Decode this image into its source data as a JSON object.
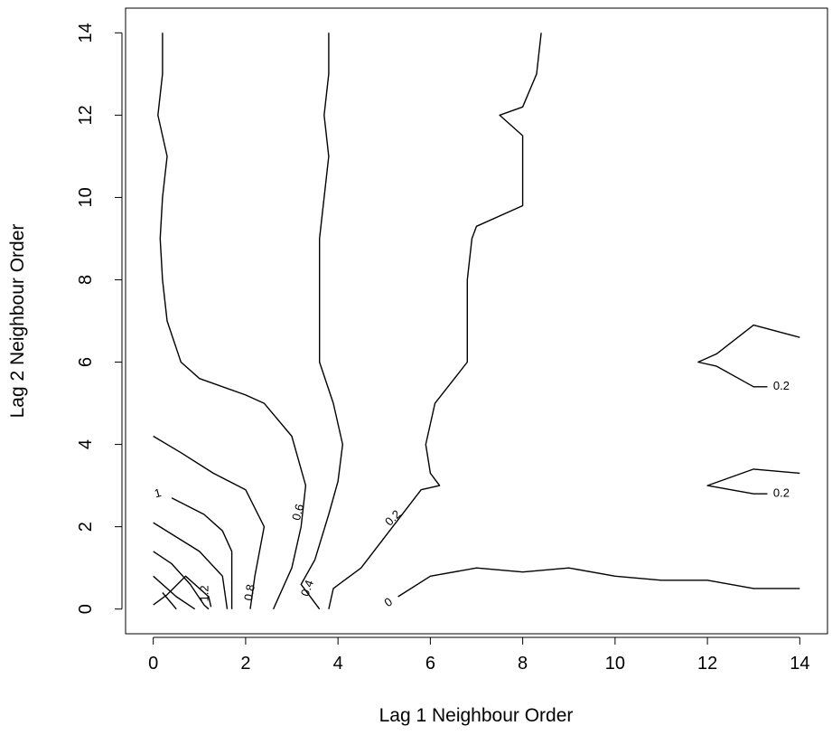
{
  "chart_data": {
    "type": "contour",
    "xlabel": "Lag 1 Neighbour Order",
    "ylabel": "Lag 2 Neighbour Order",
    "xlim": [
      -0.6,
      14.6
    ],
    "ylim": [
      -0.6,
      14.6
    ],
    "x_ticks": [
      0,
      2,
      4,
      6,
      8,
      10,
      12,
      14
    ],
    "y_ticks": [
      0,
      2,
      4,
      6,
      8,
      10,
      12,
      14
    ],
    "x_tick_labels": [
      "0",
      "2",
      "4",
      "6",
      "8",
      "10",
      "12",
      "14"
    ],
    "y_tick_labels": [
      "0",
      "2",
      "4",
      "6",
      "8",
      "10",
      "12",
      "14"
    ],
    "grid": false,
    "contours": [
      {
        "level": "1.2",
        "label": "1.2",
        "label_at": [
          1.12,
          0.38
        ],
        "label_rotation": -90,
        "points": [
          [
            0,
            0.1
          ],
          [
            0.3,
            0.35
          ],
          [
            0.7,
            0.8
          ],
          [
            1.2,
            0.3
          ],
          [
            1.25,
            0.05
          ]
        ]
      },
      {
        "level": "1.2",
        "label": "",
        "label_at": null,
        "label_rotation": 0,
        "points": [
          [
            0.2,
            0.4
          ],
          [
            0.5,
            0
          ]
        ]
      },
      {
        "level": "1.2",
        "label": "",
        "label_at": null,
        "label_rotation": 0,
        "points": [
          [
            0,
            0.8
          ],
          [
            0.5,
            0.3
          ],
          [
            0.9,
            0
          ]
        ]
      },
      {
        "level": "1.2",
        "label": "",
        "label_at": null,
        "label_rotation": 0,
        "points": [
          [
            0,
            1.4
          ],
          [
            0.4,
            1.1
          ],
          [
            0.8,
            0.6
          ],
          [
            1.1,
            0.1
          ],
          [
            1.2,
            0
          ]
        ]
      },
      {
        "level": "1",
        "label": "",
        "label_at": null,
        "label_rotation": 0,
        "points": [
          [
            0,
            2.1
          ],
          [
            1.0,
            1.4
          ],
          [
            1.5,
            0.8
          ],
          [
            1.6,
            0
          ]
        ]
      },
      {
        "level": "1",
        "label": "1",
        "label_at": [
          0.1,
          2.8
        ],
        "label_rotation": -15,
        "points": [
          [
            0.4,
            2.7
          ],
          [
            1.1,
            2.3
          ],
          [
            1.5,
            1.9
          ],
          [
            1.7,
            1.4
          ],
          [
            1.7,
            0
          ]
        ]
      },
      {
        "level": "0.8",
        "label": "0.8",
        "label_at": [
          2.1,
          0.4
        ],
        "label_rotation": -80,
        "points": [
          [
            0,
            4.2
          ],
          [
            0.6,
            3.8
          ],
          [
            1.3,
            3.3
          ],
          [
            2.0,
            2.9
          ],
          [
            2.4,
            2.0
          ],
          [
            2.2,
            0.8
          ],
          [
            2.1,
            0
          ]
        ]
      },
      {
        "level": "0.6",
        "label": "0.6",
        "label_at": [
          3.15,
          2.35
        ],
        "label_rotation": -75,
        "points": [
          [
            0.2,
            14
          ],
          [
            0.2,
            13
          ],
          [
            0.1,
            12
          ],
          [
            0.3,
            11
          ],
          [
            0.2,
            10
          ],
          [
            0.15,
            9
          ],
          [
            0.2,
            8
          ],
          [
            0.3,
            7
          ],
          [
            0.6,
            6
          ],
          [
            1.0,
            5.6
          ],
          [
            2.0,
            5.2
          ],
          [
            2.4,
            5.0
          ],
          [
            3.0,
            4.2
          ],
          [
            3.3,
            3.0
          ],
          [
            3.2,
            2.0
          ],
          [
            3.0,
            1.0
          ],
          [
            2.6,
            0
          ]
        ]
      },
      {
        "level": "0.4",
        "label": "0.4",
        "label_at": [
          3.35,
          0.5
        ],
        "label_rotation": -70,
        "points": [
          [
            3.8,
            14
          ],
          [
            3.8,
            13
          ],
          [
            3.7,
            12
          ],
          [
            3.8,
            11
          ],
          [
            3.7,
            10
          ],
          [
            3.6,
            9
          ],
          [
            3.6,
            8
          ],
          [
            3.6,
            7
          ],
          [
            3.6,
            6
          ],
          [
            3.9,
            5
          ],
          [
            4.1,
            4
          ],
          [
            4.0,
            3.1
          ],
          [
            3.8,
            2.3
          ],
          [
            3.5,
            1.2
          ],
          [
            3.2,
            0.6
          ],
          [
            3.6,
            0
          ]
        ]
      },
      {
        "level": "0.2",
        "label": "0.2",
        "label_at": [
          5.2,
          2.2
        ],
        "label_rotation": -45,
        "points": [
          [
            8.4,
            14
          ],
          [
            8.3,
            13
          ],
          [
            8.0,
            12.2
          ],
          [
            7.5,
            12.0
          ],
          [
            8.0,
            11.5
          ],
          [
            8.0,
            10.5
          ],
          [
            8.0,
            9.8
          ],
          [
            7.0,
            9.3
          ],
          [
            6.9,
            9.0
          ],
          [
            6.8,
            8.0
          ],
          [
            6.8,
            7.0
          ],
          [
            6.8,
            6.0
          ],
          [
            6.1,
            5.0
          ],
          [
            5.9,
            4.0
          ],
          [
            6.0,
            3.3
          ],
          [
            6.2,
            3.0
          ],
          [
            5.8,
            2.9
          ],
          [
            4.5,
            1.0
          ],
          [
            3.9,
            0.5
          ],
          [
            3.8,
            0
          ]
        ]
      },
      {
        "level": "0",
        "label": "0",
        "label_at": [
          5.1,
          0.15
        ],
        "label_rotation": -35,
        "points": [
          [
            5.3,
            0.3
          ],
          [
            6.0,
            0.8
          ],
          [
            7.0,
            1.0
          ],
          [
            8.0,
            0.9
          ],
          [
            9.0,
            1.0
          ],
          [
            10.0,
            0.8
          ],
          [
            11.0,
            0.7
          ],
          [
            12.0,
            0.7
          ],
          [
            13.0,
            0.5
          ],
          [
            14.0,
            0.5
          ]
        ]
      },
      {
        "level": "0.2",
        "label": "0.2",
        "label_at": [
          13.6,
          5.4
        ],
        "label_rotation": 0,
        "points": [
          [
            14.0,
            6.6
          ],
          [
            13.0,
            6.9
          ],
          [
            12.2,
            6.2
          ],
          [
            11.8,
            6.0
          ],
          [
            12.2,
            5.9
          ],
          [
            13.0,
            5.4
          ],
          [
            13.3,
            5.4
          ]
        ]
      },
      {
        "level": "0.2",
        "label": "0.2",
        "label_at": [
          13.6,
          2.8
        ],
        "label_rotation": 0,
        "points": [
          [
            14.0,
            3.3
          ],
          [
            13.0,
            3.4
          ],
          [
            12.0,
            3.0
          ],
          [
            13.0,
            2.8
          ],
          [
            13.3,
            2.8
          ]
        ]
      }
    ]
  }
}
